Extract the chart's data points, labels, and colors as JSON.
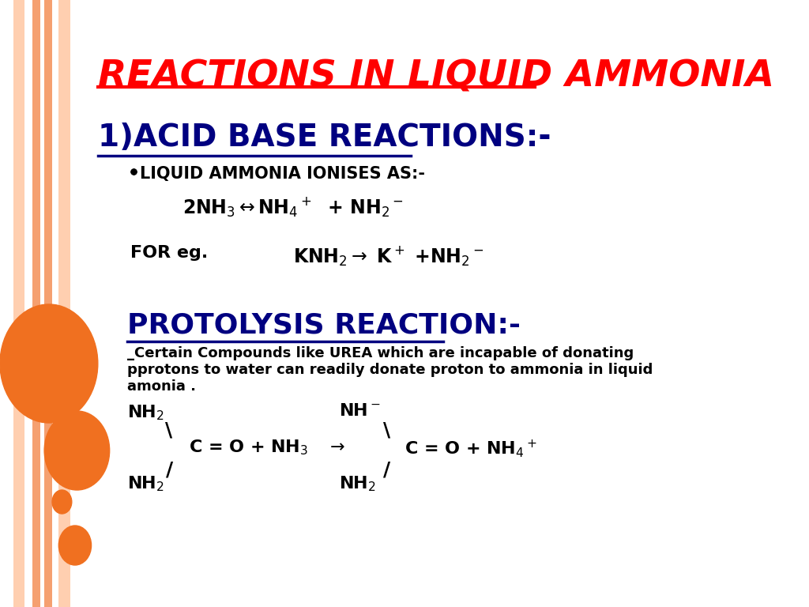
{
  "title": "REACTIONS IN LIQUID AMMONIA",
  "title_color": "#FF0000",
  "bg_color": "#FFFFFF",
  "section1_title": "1)ACID BASE REACTIONS:-",
  "section1_color": "#000080",
  "bullet_text": "LIQUID AMMONIA IONISES AS:-",
  "eq1": "2NH₃↔NH₄⁺  + NH₂⁻",
  "eq2_label": "FOR eg.",
  "eq2": "KNH₂→ K⁺ +NH₂⁻",
  "section2_title": "PROTOLYSIS REACTION:-",
  "section2_color": "#000080",
  "desc_text": "_Certain Compounds like UREA which are incapable of donating\npprotons to water can readily donate proton to ammonia in liquid\namonia .",
  "scheme_left_top": "NH₂",
  "scheme_right_top": "NH⁻",
  "scheme_left_mid": "C = O + NH₃   →",
  "scheme_right_mid": "C = O + NH₄⁺",
  "scheme_left_bot": "NH₂",
  "scheme_right_bot": "NH₂",
  "orange_color": "#F07020",
  "left_strip_colors": [
    "#FFCFB0",
    "#F5A070",
    "#F5A070",
    "#FFCFB0"
  ],
  "dark_orange": "#E06010"
}
